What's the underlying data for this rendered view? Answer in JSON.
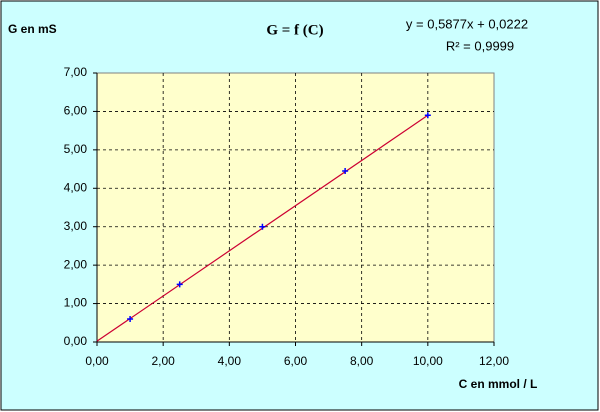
{
  "chart_data": {
    "type": "scatter",
    "title": "G = f (C)",
    "y_label": "G  en mS",
    "x_label": "C en mmol / L",
    "x": [
      1,
      2.5,
      5,
      7.5,
      10
    ],
    "values": [
      0.6,
      1.5,
      3.0,
      4.45,
      5.9
    ],
    "color": "#0000ff",
    "trendline": {
      "slope": 0.5877,
      "intercept": 0.0222,
      "color": "#cc0033",
      "equation": "y = 0,5877x + 0,0222",
      "r2_label": "R² = 0,9999"
    },
    "xlim": [
      0,
      12
    ],
    "xticks": [
      {
        "value": 0,
        "label": "0,00"
      },
      {
        "value": 2,
        "label": "2,00"
      },
      {
        "value": 4,
        "label": "4,00"
      },
      {
        "value": 6,
        "label": "6,00"
      },
      {
        "value": 8,
        "label": "8,00"
      },
      {
        "value": 10,
        "label": "10,00"
      },
      {
        "value": 12,
        "label": "12,00"
      }
    ],
    "ylim": [
      0,
      7
    ],
    "yticks": [
      {
        "value": 0,
        "label": "0,00"
      },
      {
        "value": 1,
        "label": "1,00"
      },
      {
        "value": 2,
        "label": "2,00"
      },
      {
        "value": 3,
        "label": "3,00"
      },
      {
        "value": 4,
        "label": "4,00"
      },
      {
        "value": 5,
        "label": "5,00"
      },
      {
        "value": 6,
        "label": "6,00"
      },
      {
        "value": 7,
        "label": "7,00"
      }
    ],
    "grid": true
  }
}
